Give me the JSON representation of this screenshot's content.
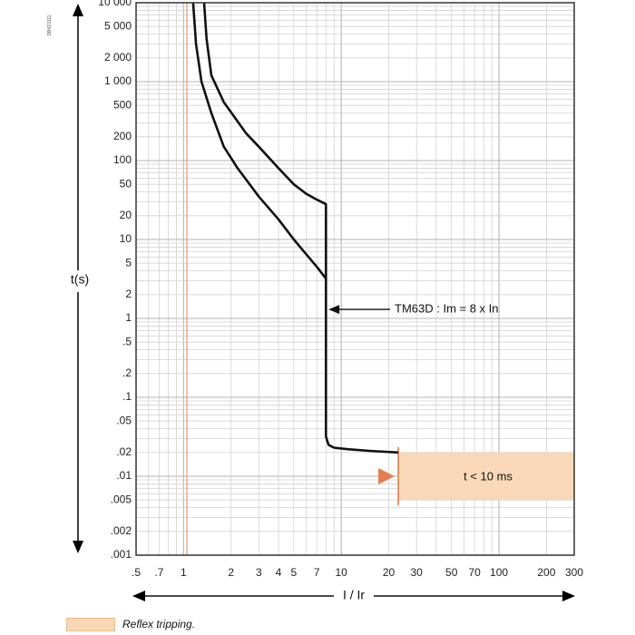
{
  "document_id": "DB423111",
  "chart_data": {
    "type": "line",
    "title": "",
    "xlabel": "I / Ir",
    "ylabel": "t(s)",
    "x_scale": "log",
    "y_scale": "log",
    "xlim": [
      0.5,
      300
    ],
    "ylim": [
      0.001,
      10000
    ],
    "grid": true,
    "x_ticks": [
      {
        "v": 0.5,
        "label": ".5"
      },
      {
        "v": 0.7,
        "label": ".7"
      },
      {
        "v": 1,
        "label": "1"
      },
      {
        "v": 2,
        "label": "2"
      },
      {
        "v": 3,
        "label": "3"
      },
      {
        "v": 4,
        "label": "4"
      },
      {
        "v": 5,
        "label": "5"
      },
      {
        "v": 7,
        "label": "7"
      },
      {
        "v": 10,
        "label": "10"
      },
      {
        "v": 20,
        "label": "20"
      },
      {
        "v": 30,
        "label": "30"
      },
      {
        "v": 50,
        "label": "50"
      },
      {
        "v": 70,
        "label": "70"
      },
      {
        "v": 100,
        "label": "100"
      },
      {
        "v": 200,
        "label": "200"
      },
      {
        "v": 300,
        "label": "300"
      }
    ],
    "y_ticks": [
      {
        "v": 10000,
        "label": "10 000"
      },
      {
        "v": 5000,
        "label": "5 000"
      },
      {
        "v": 2000,
        "label": "2 000"
      },
      {
        "v": 1000,
        "label": "1 000"
      },
      {
        "v": 500,
        "label": "500"
      },
      {
        "v": 200,
        "label": "200"
      },
      {
        "v": 100,
        "label": "100"
      },
      {
        "v": 50,
        "label": "50"
      },
      {
        "v": 20,
        "label": "20"
      },
      {
        "v": 10,
        "label": "10"
      },
      {
        "v": 5,
        "label": "5"
      },
      {
        "v": 2,
        "label": "2"
      },
      {
        "v": 1,
        "label": "1"
      },
      {
        "v": 0.5,
        "label": ".5"
      },
      {
        "v": 0.2,
        "label": ".2"
      },
      {
        "v": 0.1,
        "label": ".1"
      },
      {
        "v": 0.05,
        "label": ".05"
      },
      {
        "v": 0.02,
        "label": ".02"
      },
      {
        "v": 0.01,
        "label": ".01"
      },
      {
        "v": 0.005,
        "label": ".005"
      },
      {
        "v": 0.002,
        "label": ".002"
      },
      {
        "v": 0.001,
        "label": ".001"
      }
    ],
    "reference_line": {
      "x": 1.05,
      "color": "#e8a27a"
    },
    "series": [
      {
        "color": "#111111",
        "points": [
          [
            1.15,
            10000
          ],
          [
            1.2,
            3000
          ],
          [
            1.3,
            1000
          ],
          [
            1.5,
            400
          ],
          [
            1.8,
            150
          ],
          [
            2.2,
            80
          ],
          [
            3,
            35
          ],
          [
            4,
            18
          ],
          [
            5,
            10
          ],
          [
            6,
            6.5
          ],
          [
            7,
            4.5
          ],
          [
            8,
            3.2
          ]
        ]
      },
      {
        "color": "#111111",
        "points": [
          [
            1.35,
            10000
          ],
          [
            1.4,
            3500
          ],
          [
            1.5,
            1200
          ],
          [
            1.8,
            550
          ],
          [
            2.5,
            220
          ],
          [
            3,
            150
          ],
          [
            4,
            80
          ],
          [
            5,
            50
          ],
          [
            6,
            38
          ],
          [
            7,
            32
          ],
          [
            8,
            28
          ],
          [
            8,
            3.2
          ],
          [
            8,
            0.032
          ],
          [
            8.3,
            0.025
          ],
          [
            9,
            0.023
          ],
          [
            11,
            0.022
          ],
          [
            15,
            0.021
          ],
          [
            23,
            0.02
          ]
        ]
      }
    ],
    "reflex_zone": {
      "x_start": 23,
      "x_end": 300,
      "y_top": 0.02,
      "y_bottom": 0.005,
      "color": "#f8d8b8",
      "edge_color": "#e08050",
      "label": "t < 10 ms"
    },
    "annotations": [
      {
        "text": "TM63D : Im = 8 x In",
        "arrow_to": [
          8.3,
          1.3
        ]
      }
    ],
    "legend": {
      "entries": [
        {
          "label": "Reflex tripping.",
          "color": "#f8d8b8"
        }
      ],
      "placement": "bottom-left"
    }
  }
}
